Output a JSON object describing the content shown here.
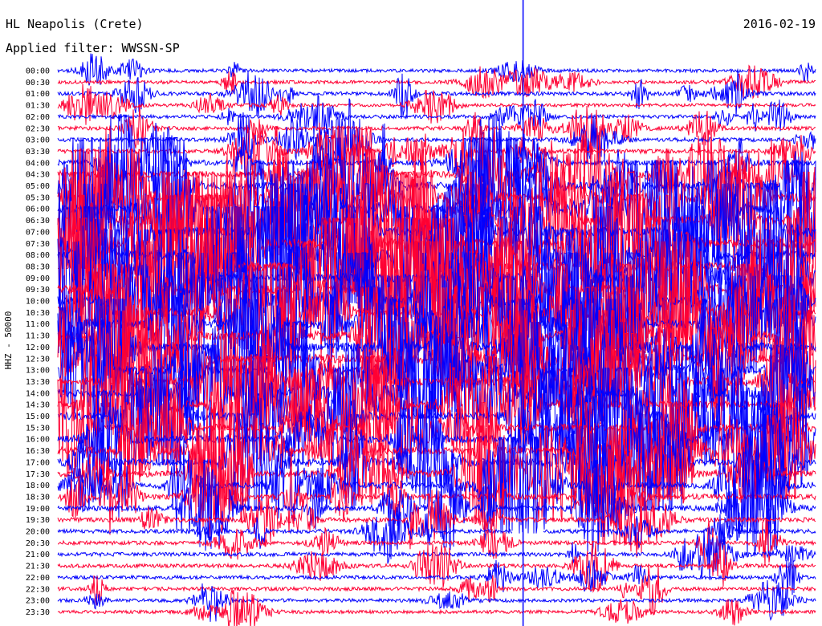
{
  "header": {
    "station": "HL Neapolis (Crete)",
    "date": "2016-02-19",
    "filter_label": "Applied filter: WWSSN-SP"
  },
  "chart_data": {
    "type": "line",
    "title": "HL Neapolis (Crete)",
    "subtitle": "Applied filter: WWSSN-SP",
    "ylabel": "HHZ - 50000",
    "row_labels": [
      "00:00",
      "00:30",
      "01:00",
      "01:30",
      "02:00",
      "02:30",
      "03:00",
      "03:30",
      "04:00",
      "04:30",
      "05:00",
      "05:30",
      "06:00",
      "06:30",
      "07:00",
      "07:30",
      "08:00",
      "08:30",
      "09:00",
      "09:30",
      "10:00",
      "10:30",
      "11:00",
      "11:30",
      "12:00",
      "12:30",
      "13:00",
      "13:30",
      "14:00",
      "14:30",
      "15:00",
      "15:30",
      "16:00",
      "16:30",
      "17:00",
      "17:30",
      "18:00",
      "18:30",
      "19:00",
      "19:30",
      "20:00",
      "20:30",
      "21:00",
      "21:30",
      "22:00",
      "22:30",
      "23:00",
      "23:30"
    ],
    "trace_colors": [
      "#0000ff",
      "#ff0033"
    ],
    "relative_activity": [
      1,
      1,
      1.3,
      1,
      1.2,
      1.3,
      1.5,
      1.6,
      2.5,
      3.2,
      3.8,
      4.2,
      4.6,
      5,
      5,
      5,
      5,
      5,
      4.8,
      4.8,
      4.8,
      4.8,
      4.8,
      4.8,
      4.6,
      4.6,
      4.4,
      4.2,
      4.2,
      4,
      3.8,
      3.6,
      3.6,
      3.6,
      3.6,
      3.4,
      3,
      2.6,
      2.2,
      1.8,
      1.5,
      1.4,
      1.3,
      1.3,
      1.2,
      1.2,
      1.1,
      1
    ],
    "gaps": [
      {
        "row": "20:00",
        "from_fraction": 0.6,
        "to_fraction": 0.64
      }
    ],
    "marker_fraction": 0.614,
    "grid": false,
    "legend": "none"
  }
}
